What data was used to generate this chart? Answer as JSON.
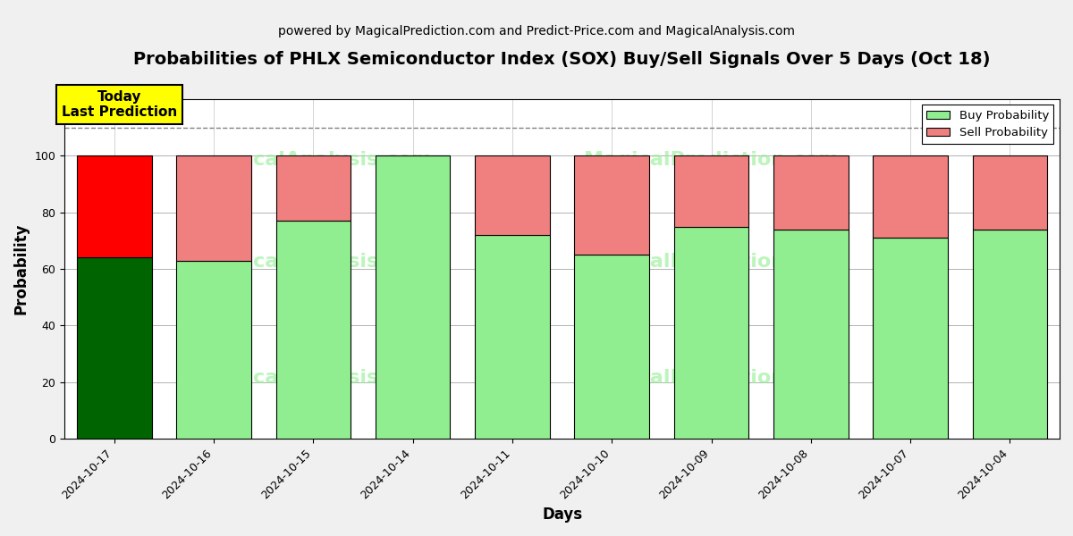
{
  "title": "Probabilities of PHLX Semiconductor Index (SOX) Buy/Sell Signals Over 5 Days (Oct 18)",
  "subtitle": "powered by MagicalPrediction.com and Predict-Price.com and MagicalAnalysis.com",
  "xlabel": "Days",
  "ylabel": "Probability",
  "categories": [
    "2024-10-17",
    "2024-10-16",
    "2024-10-15",
    "2024-10-14",
    "2024-10-11",
    "2024-10-10",
    "2024-10-09",
    "2024-10-08",
    "2024-10-07",
    "2024-10-04"
  ],
  "buy_values": [
    64,
    63,
    77,
    100,
    72,
    65,
    75,
    74,
    71,
    74
  ],
  "sell_values": [
    36,
    37,
    23,
    0,
    28,
    35,
    25,
    26,
    29,
    26
  ],
  "buy_color_today": "#006400",
  "sell_color_today": "#FF0000",
  "buy_color_normal": "#90EE90",
  "sell_color_normal": "#F08080",
  "today_annotation": "Today\nLast Prediction",
  "today_annotation_bg": "#FFFF00",
  "legend_buy": "Buy Probability",
  "legend_sell": "Sell Probability",
  "ylim": [
    0,
    120
  ],
  "yticks": [
    0,
    20,
    40,
    60,
    80,
    100
  ],
  "dashed_line_y": 110,
  "title_fontsize": 14,
  "subtitle_fontsize": 10,
  "axis_label_fontsize": 12,
  "tick_fontsize": 9,
  "bar_width": 0.75,
  "fig_bg_color": "#f0f0f0",
  "plot_bg_color": "#ffffff"
}
